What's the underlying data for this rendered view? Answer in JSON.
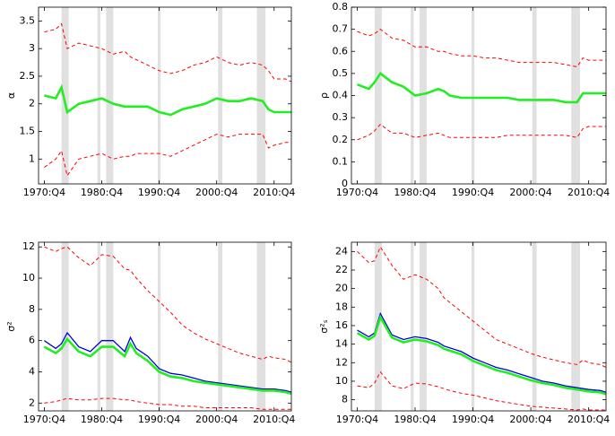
{
  "chart_data": [
    {
      "type": "line",
      "ylabel": "α",
      "x": [
        "1970:Q4",
        "1972:Q4",
        "1973:Q4",
        "1974:Q4",
        "1976:Q4",
        "1978:Q4",
        "1980:Q4",
        "1982:Q4",
        "1984:Q4",
        "1985:Q4",
        "1986:Q4",
        "1988:Q4",
        "1990:Q4",
        "1992:Q4",
        "1994:Q4",
        "1996:Q4",
        "1998:Q4",
        "2000:Q4",
        "2002:Q4",
        "2004:Q4",
        "2006:Q4",
        "2008:Q4",
        "2009:Q4",
        "2010:Q4",
        "2012:Q4",
        "2013:Q4"
      ],
      "xlim": [
        "1969:Q4",
        "2013:Q4"
      ],
      "xticks": [
        "1970:Q4",
        "1980:Q4",
        "1990:Q4",
        "2000:Q4",
        "2010:Q4"
      ],
      "ylim": [
        0.55,
        3.75
      ],
      "yticks": [
        1,
        1.5,
        2,
        2.5,
        3,
        3.5
      ],
      "shaded_periods": [
        [
          "1973:Q4",
          "1975:Q1"
        ],
        [
          "1980:Q1",
          "1980:Q3"
        ],
        [
          "1981:Q3",
          "1982:Q4"
        ],
        [
          "1990:Q3",
          "1991:Q1"
        ],
        [
          "2001:Q1",
          "2001:Q4"
        ],
        [
          "2007:Q4",
          "2009:Q2"
        ]
      ],
      "shade_color": "#e0e0e0",
      "series": [
        {
          "color": "#ff0000",
          "dashed": true,
          "values": [
            3.3,
            3.35,
            3.45,
            3.0,
            3.1,
            3.05,
            3.0,
            2.9,
            2.95,
            2.85,
            2.8,
            2.7,
            2.6,
            2.55,
            2.6,
            2.7,
            2.75,
            2.85,
            2.75,
            2.7,
            2.75,
            2.7,
            2.6,
            2.45,
            2.45,
            2.4
          ]
        },
        {
          "color": "#ff0000",
          "dashed": true,
          "values": [
            0.85,
            1.0,
            1.15,
            0.7,
            1.0,
            1.05,
            1.1,
            1.0,
            1.05,
            1.05,
            1.1,
            1.1,
            1.1,
            1.05,
            1.15,
            1.25,
            1.35,
            1.45,
            1.4,
            1.45,
            1.45,
            1.45,
            1.2,
            1.25,
            1.3,
            1.3
          ]
        },
        {
          "color": "#22ee22",
          "dashed": false,
          "values": [
            2.15,
            2.1,
            2.3,
            1.85,
            2.0,
            2.05,
            2.1,
            2.0,
            1.95,
            1.95,
            1.95,
            1.95,
            1.85,
            1.8,
            1.9,
            1.95,
            2.0,
            2.1,
            2.05,
            2.05,
            2.1,
            2.05,
            1.9,
            1.85,
            1.85,
            1.85
          ]
        }
      ]
    },
    {
      "type": "line",
      "ylabel": "ρ",
      "x": [
        "1970:Q4",
        "1972:Q4",
        "1973:Q4",
        "1974:Q4",
        "1976:Q4",
        "1978:Q4",
        "1980:Q4",
        "1982:Q4",
        "1984:Q4",
        "1985:Q4",
        "1986:Q4",
        "1988:Q4",
        "1990:Q4",
        "1992:Q4",
        "1994:Q4",
        "1996:Q4",
        "1998:Q4",
        "2000:Q4",
        "2002:Q4",
        "2004:Q4",
        "2006:Q4",
        "2008:Q4",
        "2009:Q4",
        "2010:Q4",
        "2012:Q4",
        "2013:Q4"
      ],
      "xlim": [
        "1969:Q4",
        "2013:Q4"
      ],
      "xticks": [
        "1970:Q4",
        "1980:Q4",
        "1990:Q4",
        "2000:Q4",
        "2010:Q4"
      ],
      "ylim": [
        0,
        0.8
      ],
      "yticks": [
        0,
        0.1,
        0.2,
        0.3,
        0.4,
        0.5,
        0.6,
        0.7,
        0.8
      ],
      "shaded_periods": [
        [
          "1973:Q4",
          "1975:Q1"
        ],
        [
          "1980:Q1",
          "1980:Q3"
        ],
        [
          "1981:Q3",
          "1982:Q4"
        ],
        [
          "1990:Q3",
          "1991:Q1"
        ],
        [
          "2001:Q1",
          "2001:Q4"
        ],
        [
          "2007:Q4",
          "2009:Q2"
        ]
      ],
      "shade_color": "#e0e0e0",
      "series": [
        {
          "color": "#ff0000",
          "dashed": true,
          "values": [
            0.69,
            0.67,
            0.68,
            0.7,
            0.66,
            0.65,
            0.62,
            0.62,
            0.6,
            0.6,
            0.59,
            0.58,
            0.58,
            0.57,
            0.57,
            0.56,
            0.55,
            0.55,
            0.55,
            0.55,
            0.54,
            0.53,
            0.57,
            0.56,
            0.56,
            0.56
          ]
        },
        {
          "color": "#ff0000",
          "dashed": true,
          "values": [
            0.2,
            0.22,
            0.24,
            0.27,
            0.23,
            0.23,
            0.21,
            0.22,
            0.23,
            0.22,
            0.21,
            0.21,
            0.21,
            0.21,
            0.21,
            0.22,
            0.22,
            0.22,
            0.22,
            0.22,
            0.22,
            0.21,
            0.25,
            0.26,
            0.26,
            0.26
          ]
        },
        {
          "color": "#22ee22",
          "dashed": false,
          "values": [
            0.45,
            0.43,
            0.46,
            0.5,
            0.46,
            0.44,
            0.4,
            0.41,
            0.43,
            0.42,
            0.4,
            0.39,
            0.39,
            0.39,
            0.39,
            0.39,
            0.38,
            0.38,
            0.38,
            0.38,
            0.37,
            0.37,
            0.41,
            0.41,
            0.41,
            0.41
          ]
        }
      ]
    },
    {
      "type": "line",
      "ylabel": "σ²",
      "x": [
        "1970:Q4",
        "1972:Q4",
        "1973:Q4",
        "1974:Q4",
        "1976:Q4",
        "1978:Q4",
        "1980:Q4",
        "1982:Q4",
        "1984:Q4",
        "1985:Q4",
        "1986:Q4",
        "1988:Q4",
        "1990:Q4",
        "1992:Q4",
        "1994:Q4",
        "1996:Q4",
        "1998:Q4",
        "2000:Q4",
        "2002:Q4",
        "2004:Q4",
        "2006:Q4",
        "2008:Q4",
        "2009:Q4",
        "2010:Q4",
        "2012:Q4",
        "2013:Q4"
      ],
      "xlim": [
        "1969:Q4",
        "2013:Q4"
      ],
      "xticks": [
        "1970:Q4",
        "1980:Q4",
        "1990:Q4",
        "2000:Q4",
        "2010:Q4"
      ],
      "ylim": [
        1.5,
        12.3
      ],
      "yticks": [
        2,
        4,
        6,
        8,
        10,
        12
      ],
      "shaded_periods": [
        [
          "1973:Q4",
          "1975:Q1"
        ],
        [
          "1980:Q1",
          "1980:Q3"
        ],
        [
          "1981:Q3",
          "1982:Q4"
        ],
        [
          "1990:Q3",
          "1991:Q1"
        ],
        [
          "2001:Q1",
          "2001:Q4"
        ],
        [
          "2007:Q4",
          "2009:Q2"
        ]
      ],
      "shade_color": "#e0e0e0",
      "series": [
        {
          "color": "#ff0000",
          "dashed": true,
          "values": [
            12.0,
            11.7,
            11.9,
            12.0,
            11.3,
            10.8,
            11.5,
            11.4,
            10.6,
            10.5,
            10.0,
            9.2,
            8.5,
            7.8,
            7.0,
            6.5,
            6.1,
            5.8,
            5.5,
            5.2,
            5.0,
            4.8,
            5.0,
            4.9,
            4.8,
            4.6
          ]
        },
        {
          "color": "#ff0000",
          "dashed": true,
          "values": [
            2.0,
            2.1,
            2.2,
            2.3,
            2.2,
            2.2,
            2.3,
            2.3,
            2.2,
            2.2,
            2.1,
            2.0,
            1.9,
            1.9,
            1.8,
            1.8,
            1.7,
            1.7,
            1.7,
            1.7,
            1.7,
            1.6,
            1.6,
            1.6,
            1.6,
            1.6
          ]
        },
        {
          "color": "#0000dd",
          "dashed": false,
          "values": [
            6.0,
            5.5,
            5.8,
            6.5,
            5.6,
            5.3,
            6.0,
            6.0,
            5.3,
            6.2,
            5.5,
            5.0,
            4.2,
            3.9,
            3.8,
            3.6,
            3.4,
            3.3,
            3.2,
            3.1,
            3.0,
            2.9,
            2.9,
            2.9,
            2.8,
            2.7
          ]
        },
        {
          "color": "#22ee22",
          "dashed": false,
          "values": [
            5.6,
            5.2,
            5.5,
            6.1,
            5.3,
            5.0,
            5.6,
            5.6,
            5.0,
            5.8,
            5.2,
            4.7,
            4.0,
            3.7,
            3.6,
            3.4,
            3.3,
            3.2,
            3.1,
            3.0,
            2.9,
            2.8,
            2.8,
            2.8,
            2.7,
            2.6
          ]
        }
      ]
    },
    {
      "type": "line",
      "ylabel": "σ²ₛ",
      "x": [
        "1970:Q4",
        "1972:Q4",
        "1973:Q4",
        "1974:Q4",
        "1976:Q4",
        "1978:Q4",
        "1980:Q4",
        "1982:Q4",
        "1984:Q4",
        "1985:Q4",
        "1986:Q4",
        "1988:Q4",
        "1990:Q4",
        "1992:Q4",
        "1994:Q4",
        "1996:Q4",
        "1998:Q4",
        "2000:Q4",
        "2002:Q4",
        "2004:Q4",
        "2006:Q4",
        "2008:Q4",
        "2009:Q4",
        "2010:Q4",
        "2012:Q4",
        "2013:Q4"
      ],
      "xlim": [
        "1969:Q4",
        "2013:Q4"
      ],
      "xticks": [
        "1970:Q4",
        "1980:Q4",
        "1990:Q4",
        "2000:Q4",
        "2010:Q4"
      ],
      "ylim": [
        6.8,
        25
      ],
      "yticks": [
        8,
        10,
        12,
        14,
        16,
        18,
        20,
        22,
        24
      ],
      "shaded_periods": [
        [
          "1973:Q4",
          "1975:Q1"
        ],
        [
          "1980:Q1",
          "1980:Q3"
        ],
        [
          "1981:Q3",
          "1982:Q4"
        ],
        [
          "1990:Q3",
          "1991:Q1"
        ],
        [
          "2001:Q1",
          "2001:Q4"
        ],
        [
          "2007:Q4",
          "2009:Q2"
        ]
      ],
      "shade_color": "#e0e0e0",
      "series": [
        {
          "color": "#ff0000",
          "dashed": true,
          "values": [
            24.0,
            22.8,
            23.0,
            24.5,
            22.5,
            21.0,
            21.5,
            21.0,
            20.0,
            19.0,
            18.5,
            17.5,
            16.5,
            15.5,
            14.5,
            14.0,
            13.5,
            13.0,
            12.6,
            12.3,
            12.0,
            11.8,
            12.3,
            12.0,
            11.8,
            11.5
          ]
        },
        {
          "color": "#ff0000",
          "dashed": true,
          "values": [
            9.5,
            9.3,
            9.8,
            11.0,
            9.5,
            9.2,
            9.8,
            9.7,
            9.4,
            9.2,
            9.0,
            8.7,
            8.5,
            8.2,
            7.9,
            7.7,
            7.5,
            7.3,
            7.2,
            7.1,
            7.0,
            6.9,
            7.0,
            6.9,
            6.9,
            6.9
          ]
        },
        {
          "color": "#0000dd",
          "dashed": false,
          "values": [
            15.5,
            14.8,
            15.2,
            17.3,
            15.0,
            14.5,
            14.8,
            14.6,
            14.2,
            13.8,
            13.6,
            13.2,
            12.5,
            12.0,
            11.5,
            11.2,
            10.8,
            10.4,
            10.0,
            9.8,
            9.5,
            9.3,
            9.2,
            9.1,
            9.0,
            8.8
          ]
        },
        {
          "color": "#22ee22",
          "dashed": false,
          "values": [
            15.2,
            14.5,
            14.9,
            16.9,
            14.7,
            14.2,
            14.5,
            14.3,
            13.9,
            13.5,
            13.3,
            12.9,
            12.2,
            11.7,
            11.2,
            10.9,
            10.5,
            10.1,
            9.8,
            9.6,
            9.3,
            9.1,
            9.0,
            8.9,
            8.8,
            8.6
          ]
        }
      ]
    }
  ]
}
